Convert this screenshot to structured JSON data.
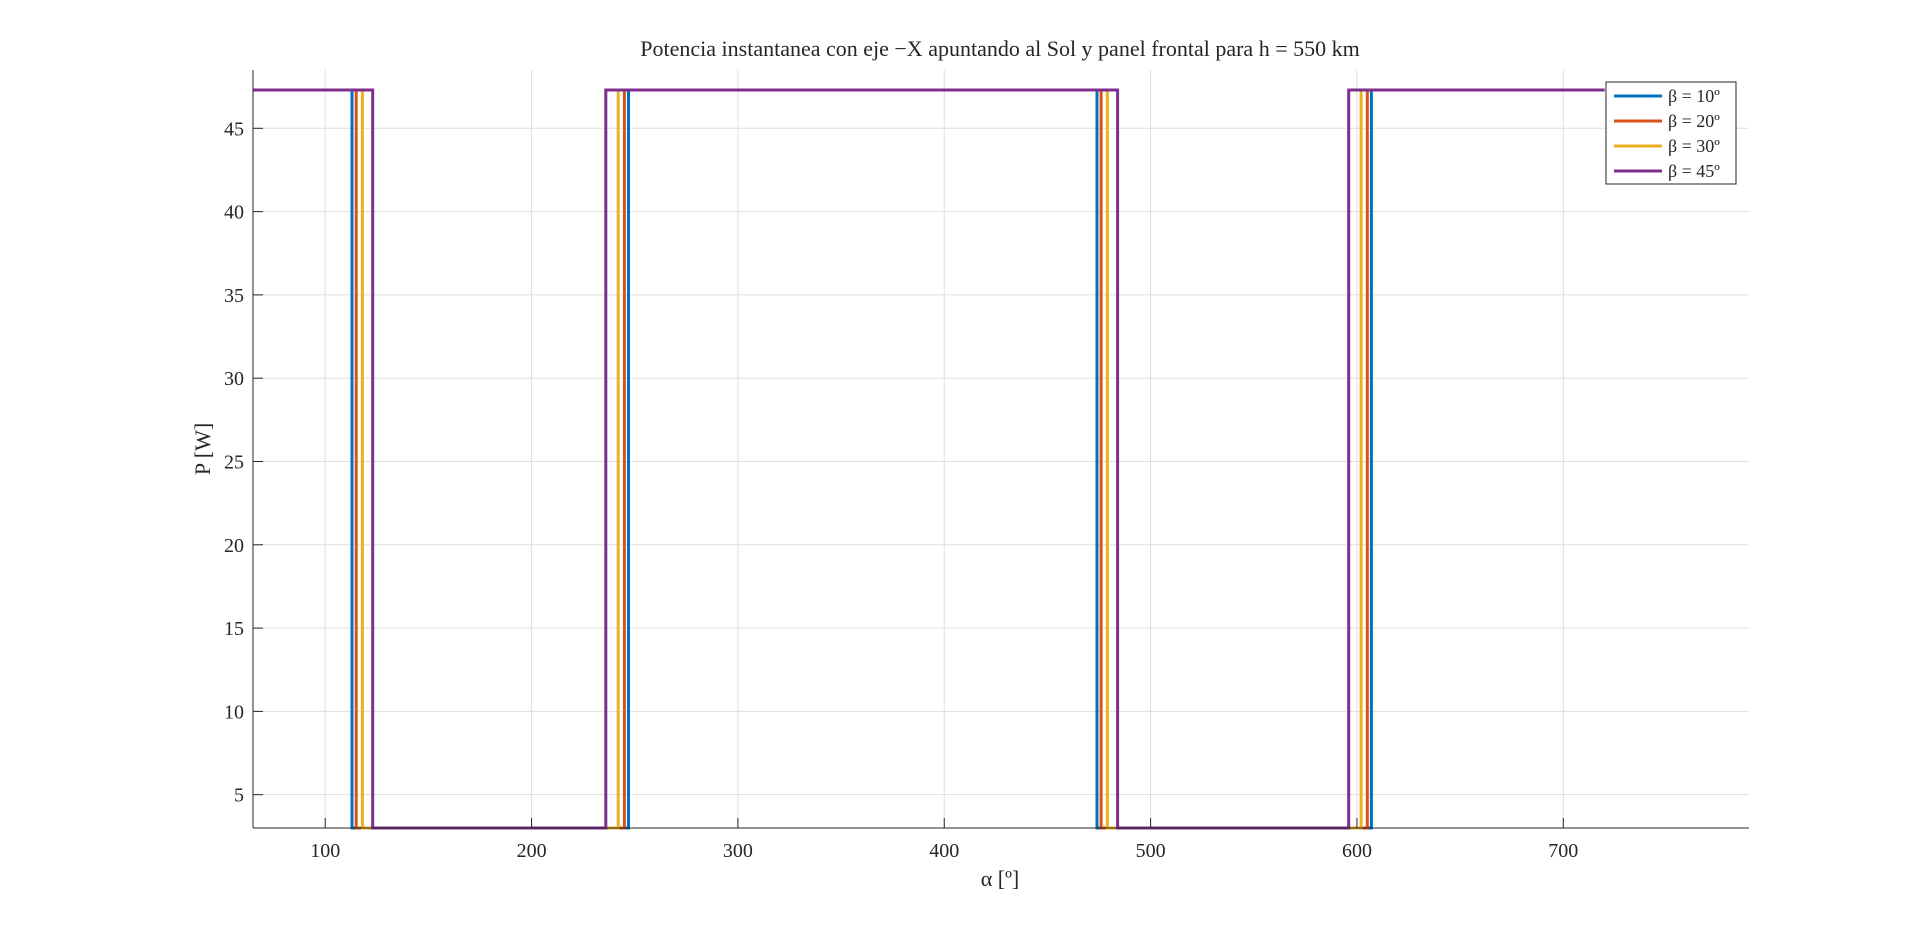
{
  "chart_data": {
    "type": "line",
    "title": "Potencia instantanea con eje −X apuntando al Sol y panel frontal para h = 550 km",
    "xlabel": "α [º]",
    "ylabel": "P [W]",
    "xlim": [
      65,
      790
    ],
    "ylim": [
      3,
      48.5
    ],
    "x_ticks": [
      100,
      200,
      300,
      400,
      500,
      600,
      700
    ],
    "y_ticks": [
      5,
      10,
      15,
      20,
      25,
      30,
      35,
      40,
      45
    ],
    "grid": true,
    "legend_position": "top-right",
    "series": [
      {
        "name": "β = 10º",
        "color": "#0072BD",
        "x": [
          65,
          113,
          113,
          247,
          247,
          474,
          474,
          607,
          607,
          720
        ],
        "y": [
          47.3,
          47.3,
          3,
          3,
          47.3,
          47.3,
          3,
          3,
          47.3,
          47.3
        ]
      },
      {
        "name": "β = 20º",
        "color": "#D95319",
        "x": [
          65,
          115,
          115,
          245,
          245,
          476,
          476,
          605,
          605,
          720
        ],
        "y": [
          47.3,
          47.3,
          3,
          3,
          47.3,
          47.3,
          3,
          3,
          47.3,
          47.3
        ]
      },
      {
        "name": "β = 30º",
        "color": "#EDB120",
        "x": [
          65,
          118,
          118,
          242,
          242,
          479,
          479,
          602,
          602,
          720
        ],
        "y": [
          47.3,
          47.3,
          3,
          3,
          47.3,
          47.3,
          3,
          3,
          47.3,
          47.3
        ]
      },
      {
        "name": "β = 45º",
        "color": "#7E2F8E",
        "x": [
          65,
          123,
          123,
          236,
          236,
          484,
          484,
          596,
          596,
          720
        ],
        "y": [
          47.3,
          47.3,
          3,
          3,
          47.3,
          47.3,
          3,
          3,
          47.3,
          47.3
        ]
      }
    ]
  }
}
